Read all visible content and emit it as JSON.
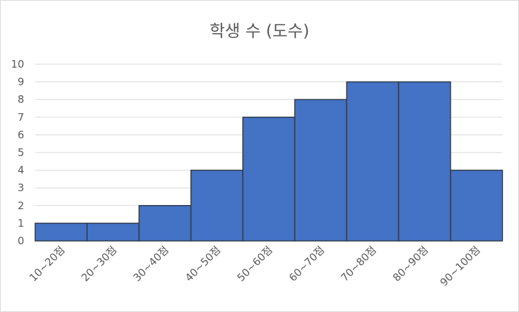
{
  "chart_data": {
    "type": "bar",
    "title": "학생 수 (도수)",
    "xlabel": "",
    "ylabel": "",
    "categories": [
      "10~20점",
      "20~30점",
      "30~40점",
      "40~50점",
      "50~60점",
      "60~70점",
      "70~80점",
      "80~90점",
      "90~100점"
    ],
    "values": [
      1,
      1,
      2,
      4,
      7,
      8,
      9,
      9,
      4
    ],
    "ylim": [
      0,
      10
    ],
    "yticks": [
      0,
      1,
      2,
      3,
      4,
      5,
      6,
      7,
      8,
      9,
      10
    ],
    "grid": true,
    "legend": "none",
    "bar_color": "#4472c4",
    "bar_gap": 0
  }
}
